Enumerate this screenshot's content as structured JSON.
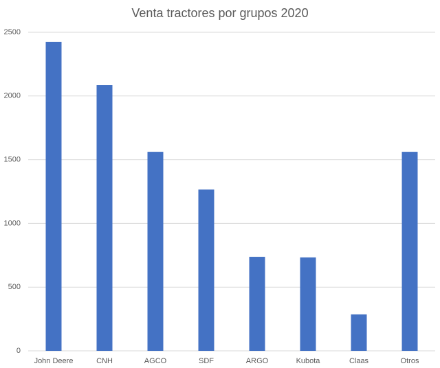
{
  "chart_data": {
    "type": "bar",
    "title": "Venta tractores por grupos 2020",
    "categories": [
      "John Deere",
      "CNH",
      "AGCO",
      "SDF",
      "ARGO",
      "Kubota",
      "Claas",
      "Otros"
    ],
    "values": [
      2425,
      2085,
      1562,
      1266,
      738,
      733,
      286,
      1562
    ],
    "color": "#4472c4",
    "ylim": [
      0,
      2500
    ],
    "yticks": [
      0,
      500,
      1000,
      1500,
      2000,
      2500
    ],
    "grid": true
  }
}
